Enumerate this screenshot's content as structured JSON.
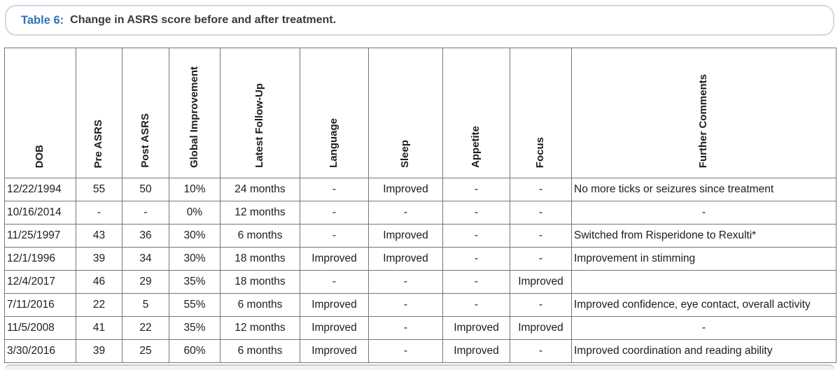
{
  "title": {
    "label": "Table 6:",
    "text": "Change in ASRS score before and after treatment."
  },
  "table": {
    "columns": [
      "DOB",
      "Pre ASRS",
      "Post ASRS",
      "Global Improvement",
      "Latest Follow-Up",
      "Language",
      "Sleep",
      "Appetite",
      "Focus",
      "Further Comments"
    ],
    "rows": [
      [
        "12/22/1994",
        "55",
        "50",
        "10%",
        "24 months",
        "-",
        "Improved",
        "-",
        "-",
        "No more ticks or seizures since treatment"
      ],
      [
        "10/16/2014",
        "-",
        "-",
        "0%",
        "12 months",
        "-",
        "-",
        "-",
        "-",
        "-"
      ],
      [
        "11/25/1997",
        "43",
        "36",
        "30%",
        "6 months",
        "-",
        "Improved",
        "-",
        "-",
        "Switched from Risperidone to Rexulti*"
      ],
      [
        "12/1/1996",
        "39",
        "34",
        "30%",
        "18 months",
        "Improved",
        "Improved",
        "-",
        "-",
        "Improvement in stimming"
      ],
      [
        "12/4/2017",
        "46",
        "29",
        "35%",
        "18 months",
        "-",
        "-",
        "-",
        "Improved",
        ""
      ],
      [
        "7/11/2016",
        "22",
        "5",
        "55%",
        "6 months",
        "Improved",
        "-",
        "-",
        "-",
        "Improved confidence, eye contact, overall activity"
      ],
      [
        "11/5/2008",
        "41",
        "22",
        "35%",
        "12 months",
        "Improved",
        "-",
        "Improved",
        "Improved",
        "-"
      ],
      [
        "3/30/2016",
        "39",
        "25",
        "60%",
        "6 months",
        "Improved",
        "-",
        "Improved",
        "-",
        "Improved coordination and reading ability"
      ]
    ]
  },
  "colors": {
    "accent_blue": "#2e74b5",
    "caption_border": "#ccd9e5",
    "grid_line": "#767676",
    "text": "#1c1c1c"
  }
}
